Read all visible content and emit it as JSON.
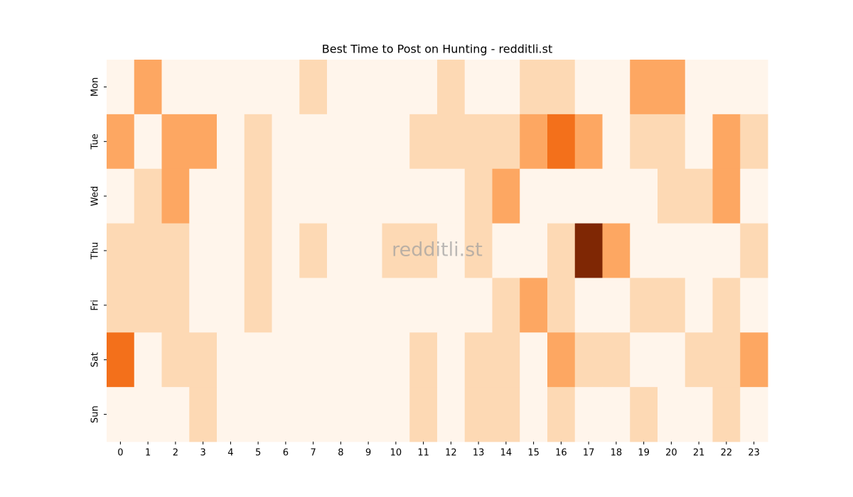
{
  "chart_data": {
    "type": "heatmap",
    "title": "Best Time to Post on Hunting - redditli.st",
    "watermark": "redditli.st",
    "x": [
      0,
      1,
      2,
      3,
      4,
      5,
      6,
      7,
      8,
      9,
      10,
      11,
      12,
      13,
      14,
      15,
      16,
      17,
      18,
      19,
      20,
      21,
      22,
      23
    ],
    "y": [
      "Mon",
      "Tue",
      "Wed",
      "Thu",
      "Fri",
      "Sat",
      "Sun"
    ],
    "values": [
      [
        0,
        2,
        0,
        0,
        0,
        0,
        0,
        1,
        0,
        0,
        0,
        0,
        1,
        0,
        0,
        1,
        1,
        0,
        0,
        2,
        2,
        0,
        0,
        0
      ],
      [
        2,
        0,
        2,
        2,
        0,
        1,
        0,
        0,
        0,
        0,
        0,
        1,
        1,
        1,
        1,
        2,
        3,
        2,
        0,
        1,
        1,
        0,
        2,
        1
      ],
      [
        0,
        1,
        2,
        0,
        0,
        1,
        0,
        0,
        0,
        0,
        0,
        0,
        0,
        1,
        2,
        0,
        0,
        0,
        0,
        0,
        1,
        1,
        2,
        0
      ],
      [
        1,
        1,
        1,
        0,
        0,
        1,
        0,
        1,
        0,
        0,
        1,
        1,
        0,
        1,
        0,
        0,
        1,
        5,
        2,
        0,
        0,
        0,
        0,
        1
      ],
      [
        1,
        1,
        1,
        0,
        0,
        1,
        0,
        0,
        0,
        0,
        0,
        0,
        0,
        0,
        1,
        2,
        1,
        0,
        0,
        1,
        1,
        0,
        1,
        0
      ],
      [
        3,
        0,
        1,
        1,
        0,
        0,
        0,
        0,
        0,
        0,
        0,
        1,
        0,
        1,
        1,
        0,
        2,
        1,
        1,
        0,
        0,
        1,
        1,
        2
      ],
      [
        0,
        0,
        0,
        1,
        0,
        0,
        0,
        0,
        0,
        0,
        0,
        1,
        0,
        1,
        1,
        0,
        1,
        0,
        0,
        1,
        0,
        0,
        1,
        0
      ]
    ],
    "colorscale": [
      "#fff5eb",
      "#fee6ce",
      "#fdd0a2",
      "#fdae6b",
      "#fd8d3c",
      "#f16913",
      "#d94801",
      "#a63603",
      "#7f2704"
    ]
  }
}
